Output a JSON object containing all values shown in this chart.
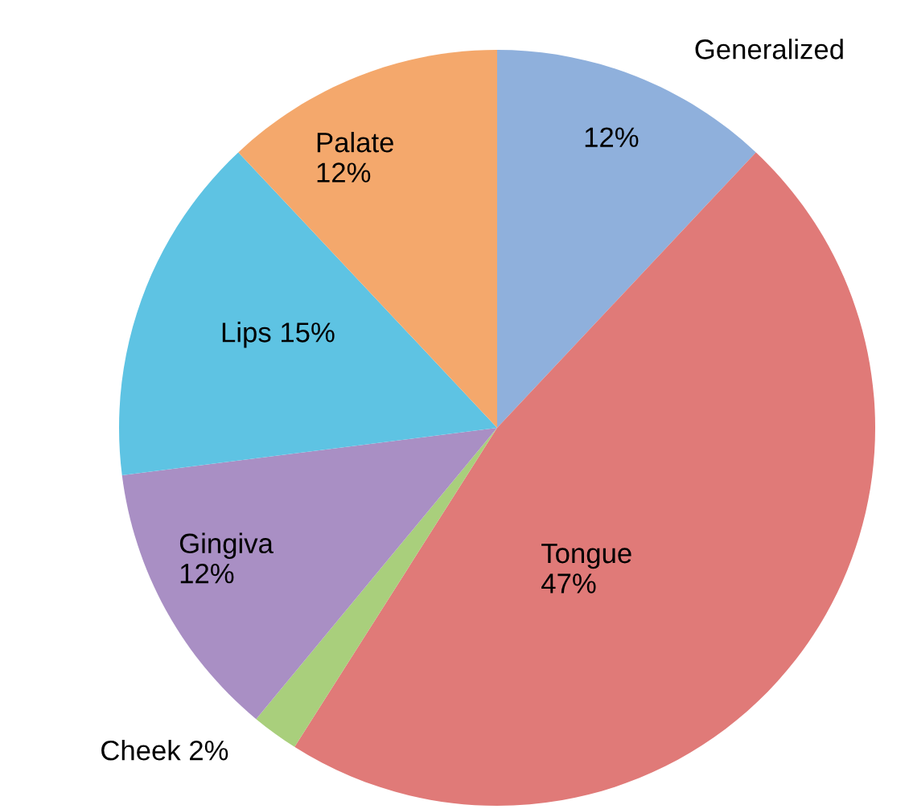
{
  "chart_data": {
    "type": "pie",
    "categories": [
      "Generalized",
      "Tongue",
      "Cheek",
      "Gingiva",
      "Lips",
      "Palate"
    ],
    "values": [
      12,
      47,
      2,
      12,
      15,
      12
    ],
    "value_labels": [
      "12%",
      "47%",
      "2%",
      "12%",
      "15%",
      "12%"
    ],
    "colors": [
      "#8fb0dc",
      "#e07a78",
      "#a9cf7c",
      "#a98fc4",
      "#5ec3e3",
      "#f4a86c"
    ],
    "legend": false
  }
}
